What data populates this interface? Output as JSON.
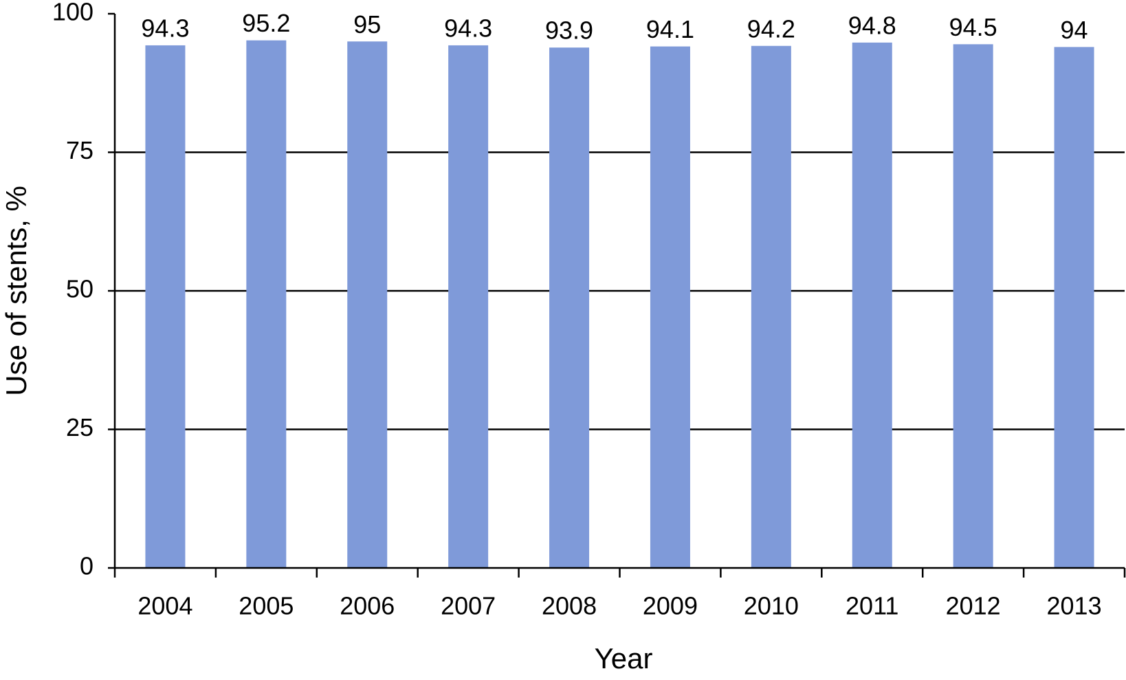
{
  "chart_data": {
    "type": "bar",
    "x_label": "Year",
    "y_label": "Use of stents, %",
    "categories": [
      "2004",
      "2005",
      "2006",
      "2007",
      "2008",
      "2009",
      "2010",
      "2011",
      "2012",
      "2013"
    ],
    "values": [
      94.3,
      95.2,
      95,
      94.3,
      93.9,
      94.1,
      94.2,
      94.8,
      94.5,
      94
    ],
    "color": "#7f9ad9",
    "ylim": [
      0,
      100
    ],
    "yticks": [
      0,
      25,
      50,
      75,
      100
    ],
    "grid": true
  }
}
